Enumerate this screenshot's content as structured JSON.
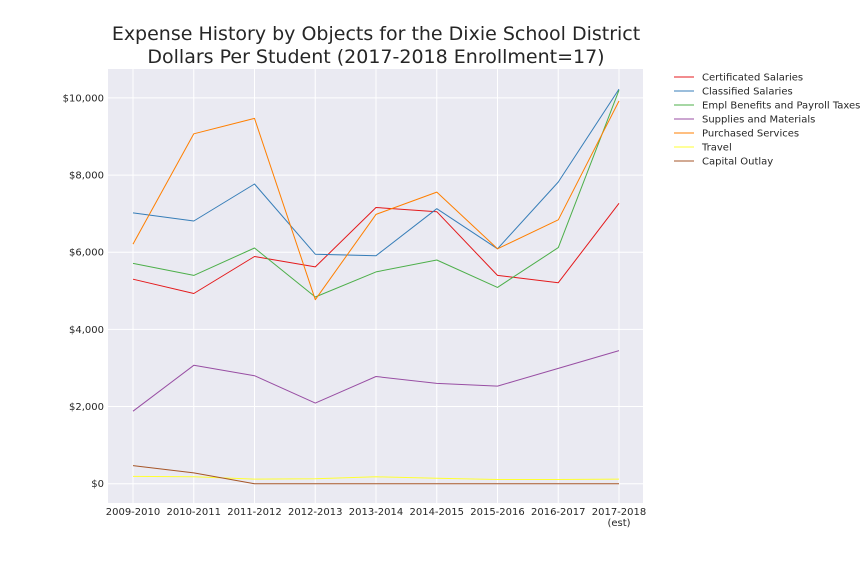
{
  "chart_data": {
    "type": "line",
    "title": [
      "Expense History by Objects for the Dixie School District",
      "Dollars Per Student (2017-2018 Enrollment=17)"
    ],
    "xlabel": "",
    "ylabel": "",
    "categories": [
      [
        "2009-2010"
      ],
      [
        "2010-2011"
      ],
      [
        "2011-2012"
      ],
      [
        "2012-2013"
      ],
      [
        "2013-2014"
      ],
      [
        "2014-2015"
      ],
      [
        "2015-2016"
      ],
      [
        "2016-2017"
      ],
      [
        "2017-2018",
        "(est)"
      ]
    ],
    "ylim": [
      -500,
      10750
    ],
    "yticks": [
      0,
      2000,
      4000,
      6000,
      8000,
      10000
    ],
    "ytick_labels": [
      "$0",
      "$2,000",
      "$4,000",
      "$6,000",
      "$8,000",
      "$10,000"
    ],
    "grid": true,
    "legend_position": "outside-right",
    "series": [
      {
        "name": "Certificated Salaries",
        "color": "#e41a1c",
        "values": [
          5300,
          4930,
          5890,
          5620,
          7160,
          7050,
          5400,
          5210,
          7270
        ]
      },
      {
        "name": "Classified Salaries",
        "color": "#377eb8",
        "values": [
          7020,
          6810,
          7770,
          5950,
          5910,
          7130,
          6090,
          7820,
          10230
        ]
      },
      {
        "name": "Empl Benefits and Payroll Taxes",
        "color": "#4daf4a",
        "values": [
          5710,
          5400,
          6110,
          4840,
          5490,
          5800,
          5090,
          6120,
          10200
        ]
      },
      {
        "name": "Supplies and Materials",
        "color": "#984ea3",
        "values": [
          1880,
          3070,
          2800,
          2090,
          2780,
          2600,
          2530,
          2990,
          3450
        ]
      },
      {
        "name": "Purchased Services",
        "color": "#ff7f00",
        "values": [
          6210,
          9070,
          9470,
          4770,
          6980,
          7560,
          6090,
          6840,
          9920
        ]
      },
      {
        "name": "Travel",
        "color": "#ffff33",
        "values": [
          190,
          180,
          120,
          130,
          180,
          140,
          110,
          110,
          120
        ]
      },
      {
        "name": "Capital Outlay",
        "color": "#a65628",
        "values": [
          470,
          280,
          0,
          0,
          0,
          0,
          0,
          0,
          0
        ]
      }
    ]
  }
}
